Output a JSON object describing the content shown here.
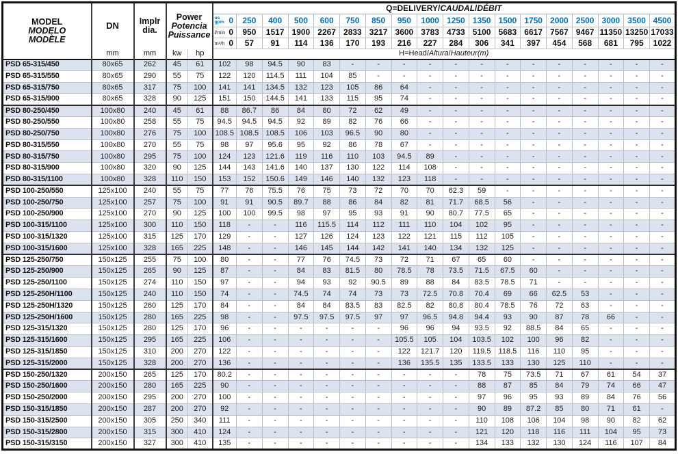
{
  "table": {
    "model_header": {
      "lines": [
        "MODEL",
        "MODELO",
        "MODÈLE"
      ]
    },
    "dn_header": {
      "label": "DN",
      "unit": "mm"
    },
    "impeller_header": {
      "lines": [
        "Implr",
        "dia."
      ],
      "unit": "mm"
    },
    "power_header": {
      "lines": [
        "Power",
        "Potencia",
        "Puissance"
      ],
      "units": [
        "kw",
        "hp"
      ]
    },
    "q_header": {
      "parts": [
        "Q=DELIVERY/",
        "CAUDAL",
        "/",
        "DÉBIT"
      ]
    },
    "h_header": {
      "parts": [
        "H=Head/",
        "Altura",
        "/",
        "Hauteur",
        "(m)"
      ]
    },
    "flow_units": {
      "gpm_label_top": "us",
      "gpm_label_bottom": "gpm",
      "lmin_label": "l/min",
      "m3h_label": "m³/h"
    },
    "flow_columns": {
      "gpm": [
        "0",
        "250",
        "400",
        "500",
        "600",
        "750",
        "850",
        "950",
        "1000",
        "1250",
        "1350",
        "1500",
        "1750",
        "2000",
        "2500",
        "3000",
        "3500",
        "4500"
      ],
      "lmin": [
        "0",
        "950",
        "1517",
        "1900",
        "2267",
        "2833",
        "3217",
        "3600",
        "3783",
        "4733",
        "5100",
        "5683",
        "6617",
        "7567",
        "9467",
        "11350",
        "13250",
        "17033"
      ],
      "m3h": [
        "0",
        "57",
        "91",
        "114",
        "136",
        "170",
        "193",
        "216",
        "227",
        "284",
        "306",
        "341",
        "397",
        "454",
        "568",
        "681",
        "795",
        "1022"
      ]
    },
    "group_end_rows": [
      3,
      10,
      16,
      26
    ],
    "colors": {
      "accent_blue": "#0070c0",
      "row_shade": "#dce3ee"
    },
    "rows": [
      {
        "model": "PSD 65-315/450",
        "dn": "80x65",
        "dia": "262",
        "kw": "45",
        "hp": "61",
        "heads": [
          "102",
          "98",
          "94.5",
          "90",
          "83",
          "-",
          "-",
          "-",
          "-",
          "-",
          "-",
          "-",
          "-",
          "-",
          "-",
          "-",
          "-",
          "-"
        ]
      },
      {
        "model": "PSD 65-315/550",
        "dn": "80x65",
        "dia": "290",
        "kw": "55",
        "hp": "75",
        "heads": [
          "122",
          "120",
          "114.5",
          "111",
          "104",
          "85",
          "-",
          "-",
          "-",
          "-",
          "-",
          "-",
          "-",
          "-",
          "-",
          "-",
          "-",
          "-"
        ]
      },
      {
        "model": "PSD 65-315/750",
        "dn": "80x65",
        "dia": "317",
        "kw": "75",
        "hp": "100",
        "heads": [
          "141",
          "141",
          "134.5",
          "132",
          "123",
          "105",
          "86",
          "64",
          "-",
          "-",
          "-",
          "-",
          "-",
          "-",
          "-",
          "-",
          "-",
          "-"
        ]
      },
      {
        "model": "PSD 65-315/900",
        "dn": "80x65",
        "dia": "328",
        "kw": "90",
        "hp": "125",
        "heads": [
          "151",
          "150",
          "144.5",
          "141",
          "133",
          "115",
          "95",
          "74",
          "-",
          "-",
          "-",
          "-",
          "-",
          "-",
          "-",
          "-",
          "-",
          "-"
        ]
      },
      {
        "model": "PSD 80-250/450",
        "dn": "100x80",
        "dia": "240",
        "kw": "45",
        "hp": "61",
        "heads": [
          "88",
          "86.7",
          "86",
          "84",
          "80",
          "72",
          "62",
          "49",
          "-",
          "-",
          "-",
          "-",
          "-",
          "-",
          "-",
          "-",
          "-",
          "-"
        ]
      },
      {
        "model": "PSD 80-250/550",
        "dn": "100x80",
        "dia": "258",
        "kw": "55",
        "hp": "75",
        "heads": [
          "94.5",
          "94.5",
          "94.5",
          "92",
          "89",
          "82",
          "76",
          "66",
          "-",
          "-",
          "-",
          "-",
          "-",
          "-",
          "-",
          "-",
          "-",
          "-"
        ]
      },
      {
        "model": "PSD 80-250/750",
        "dn": "100x80",
        "dia": "276",
        "kw": "75",
        "hp": "100",
        "heads": [
          "108.5",
          "108.5",
          "108.5",
          "106",
          "103",
          "96.5",
          "90",
          "80",
          "-",
          "-",
          "-",
          "-",
          "-",
          "-",
          "-",
          "-",
          "-",
          "-"
        ]
      },
      {
        "model": "PSD 80-315/550",
        "dn": "100x80",
        "dia": "270",
        "kw": "55",
        "hp": "75",
        "heads": [
          "98",
          "97",
          "95.6",
          "95",
          "92",
          "86",
          "78",
          "67",
          "-",
          "-",
          "-",
          "-",
          "-",
          "-",
          "-",
          "-",
          "-",
          "-"
        ]
      },
      {
        "model": "PSD 80-315/750",
        "dn": "100x80",
        "dia": "295",
        "kw": "75",
        "hp": "100",
        "heads": [
          "124",
          "123",
          "121.6",
          "119",
          "116",
          "110",
          "103",
          "94.5",
          "89",
          "-",
          "-",
          "-",
          "-",
          "-",
          "-",
          "-",
          "-",
          "-"
        ]
      },
      {
        "model": "PSD 80-315/900",
        "dn": "100x80",
        "dia": "320",
        "kw": "90",
        "hp": "125",
        "heads": [
          "144",
          "143",
          "141.6",
          "140",
          "137",
          "130",
          "122",
          "114",
          "108",
          "-",
          "-",
          "-",
          "-",
          "-",
          "-",
          "-",
          "-",
          "-"
        ]
      },
      {
        "model": "PSD 80-315/1100",
        "dn": "100x80",
        "dia": "328",
        "kw": "110",
        "hp": "150",
        "heads": [
          "153",
          "152",
          "150.6",
          "149",
          "146",
          "140",
          "132",
          "123",
          "118",
          "-",
          "-",
          "-",
          "-",
          "-",
          "-",
          "-",
          "-",
          "-"
        ]
      },
      {
        "model": "PSD 100-250/550",
        "dn": "125x100",
        "dia": "240",
        "kw": "55",
        "hp": "75",
        "heads": [
          "77",
          "76",
          "75.5",
          "76",
          "75",
          "73",
          "72",
          "70",
          "70",
          "62.3",
          "59",
          "-",
          "-",
          "-",
          "-",
          "-",
          "-",
          "-"
        ]
      },
      {
        "model": "PSD 100-250/750",
        "dn": "125x100",
        "dia": "257",
        "kw": "75",
        "hp": "100",
        "heads": [
          "91",
          "91",
          "90.5",
          "89.7",
          "88",
          "86",
          "84",
          "82",
          "81",
          "71.7",
          "68.5",
          "56",
          "-",
          "-",
          "-",
          "-",
          "-",
          "-"
        ]
      },
      {
        "model": "PSD 100-250/900",
        "dn": "125x100",
        "dia": "270",
        "kw": "90",
        "hp": "125",
        "heads": [
          "100",
          "100",
          "99.5",
          "98",
          "97",
          "95",
          "93",
          "91",
          "90",
          "80.7",
          "77.5",
          "65",
          "-",
          "-",
          "-",
          "-",
          "-",
          "-"
        ]
      },
      {
        "model": "PSD 100-315/1100",
        "dn": "125x100",
        "dia": "300",
        "kw": "110",
        "hp": "150",
        "heads": [
          "118",
          "-",
          "-",
          "116",
          "115.5",
          "114",
          "112",
          "111",
          "110",
          "104",
          "102",
          "95",
          "-",
          "-",
          "-",
          "-",
          "-",
          "-"
        ]
      },
      {
        "model": "PSD 100-315/1320",
        "dn": "125x100",
        "dia": "315",
        "kw": "125",
        "hp": "170",
        "heads": [
          "129",
          "-",
          "-",
          "127",
          "126",
          "124",
          "123",
          "122",
          "121",
          "115",
          "112",
          "105",
          "-",
          "-",
          "-",
          "-",
          "-",
          "-"
        ]
      },
      {
        "model": "PSD 100-315/1600",
        "dn": "125x100",
        "dia": "328",
        "kw": "165",
        "hp": "225",
        "heads": [
          "148",
          "-",
          "-",
          "146",
          "145",
          "144",
          "142",
          "141",
          "140",
          "134",
          "132",
          "125",
          "-",
          "-",
          "-",
          "-",
          "-",
          "-"
        ]
      },
      {
        "model": "PSD 125-250/750",
        "dn": "150x125",
        "dia": "255",
        "kw": "75",
        "hp": "100",
        "heads": [
          "80",
          "-",
          "-",
          "77",
          "76",
          "74.5",
          "73",
          "72",
          "71",
          "67",
          "65",
          "60",
          "-",
          "-",
          "-",
          "-",
          "-",
          "-"
        ]
      },
      {
        "model": "PSD 125-250/900",
        "dn": "150x125",
        "dia": "265",
        "kw": "90",
        "hp": "125",
        "heads": [
          "87",
          "-",
          "-",
          "84",
          "83",
          "81.5",
          "80",
          "78.5",
          "78",
          "73.5",
          "71.5",
          "67.5",
          "60",
          "-",
          "-",
          "-",
          "-",
          "-"
        ]
      },
      {
        "model": "PSD 125-250/1100",
        "dn": "150x125",
        "dia": "274",
        "kw": "110",
        "hp": "150",
        "heads": [
          "97",
          "-",
          "-",
          "94",
          "93",
          "92",
          "90.5",
          "89",
          "88",
          "84",
          "83.5",
          "78.5",
          "71",
          "-",
          "-",
          "-",
          "-",
          "-"
        ]
      },
      {
        "model": "PSD 125-250H/1100",
        "dn": "150x125",
        "dia": "240",
        "kw": "110",
        "hp": "150",
        "heads": [
          "74",
          "-",
          "-",
          "74.5",
          "74",
          "74",
          "73",
          "73",
          "72.5",
          "70.8",
          "70.4",
          "69",
          "66",
          "62.5",
          "53",
          "-",
          "-",
          "-"
        ]
      },
      {
        "model": "PSD 125-250H/1320",
        "dn": "150x125",
        "dia": "260",
        "kw": "125",
        "hp": "170",
        "heads": [
          "84",
          "-",
          "-",
          "84",
          "84",
          "83.5",
          "83",
          "82.5",
          "82",
          "80.8",
          "80.4",
          "78.5",
          "76",
          "72",
          "63",
          "-",
          "-",
          "-"
        ]
      },
      {
        "model": "PSD 125-250H/1600",
        "dn": "150x125",
        "dia": "280",
        "kw": "165",
        "hp": "225",
        "heads": [
          "98",
          "-",
          "-",
          "97.5",
          "97.5",
          "97.5",
          "97",
          "97",
          "96.5",
          "94.8",
          "94.4",
          "93",
          "90",
          "87",
          "78",
          "66",
          "-",
          "-"
        ]
      },
      {
        "model": "PSD 125-315/1320",
        "dn": "150x125",
        "dia": "280",
        "kw": "125",
        "hp": "170",
        "heads": [
          "96",
          "-",
          "-",
          "-",
          "-",
          "-",
          "-",
          "96",
          "96",
          "94",
          "93.5",
          "92",
          "88.5",
          "84",
          "65",
          "-",
          "-",
          "-"
        ]
      },
      {
        "model": "PSD 125-315/1600",
        "dn": "150x125",
        "dia": "295",
        "kw": "165",
        "hp": "225",
        "heads": [
          "106",
          "-",
          "-",
          "-",
          "-",
          "-",
          "-",
          "105.5",
          "105",
          "104",
          "103.5",
          "102",
          "100",
          "96",
          "82",
          "-",
          "-",
          "-"
        ]
      },
      {
        "model": "PSD 125-315/1850",
        "dn": "150x125",
        "dia": "310",
        "kw": "200",
        "hp": "270",
        "heads": [
          "122",
          "-",
          "-",
          "-",
          "-",
          "-",
          "-",
          "122",
          "121.7",
          "120",
          "119.5",
          "118.5",
          "116",
          "110",
          "95",
          "-",
          "-",
          "-"
        ]
      },
      {
        "model": "PSD 125-315/2000",
        "dn": "150x125",
        "dia": "328",
        "kw": "200",
        "hp": "270",
        "heads": [
          "136",
          "-",
          "-",
          "-",
          "-",
          "-",
          "-",
          "136",
          "135.5",
          "135",
          "133.5",
          "133",
          "130",
          "125",
          "110",
          "-",
          "-",
          "-"
        ]
      },
      {
        "model": "PSD 150-250/1320",
        "dn": "200x150",
        "dia": "265",
        "kw": "125",
        "hp": "170",
        "heads": [
          "80.2",
          "-",
          "-",
          "-",
          "-",
          "-",
          "-",
          "-",
          "-",
          "-",
          "78",
          "75",
          "73.5",
          "71",
          "67",
          "61",
          "54",
          "37"
        ]
      },
      {
        "model": "PSD 150-250/1600",
        "dn": "200x150",
        "dia": "280",
        "kw": "165",
        "hp": "225",
        "heads": [
          "90",
          "-",
          "-",
          "-",
          "-",
          "-",
          "-",
          "-",
          "-",
          "-",
          "88",
          "87",
          "85",
          "84",
          "79",
          "74",
          "66",
          "47"
        ]
      },
      {
        "model": "PSD 150-250/2000",
        "dn": "200x150",
        "dia": "295",
        "kw": "200",
        "hp": "270",
        "heads": [
          "100",
          "-",
          "-",
          "-",
          "-",
          "-",
          "-",
          "-",
          "-",
          "-",
          "97",
          "96",
          "95",
          "93",
          "89",
          "84",
          "76",
          "56"
        ]
      },
      {
        "model": "PSD 150-315/1850",
        "dn": "200x150",
        "dia": "287",
        "kw": "200",
        "hp": "270",
        "heads": [
          "92",
          "-",
          "-",
          "-",
          "-",
          "-",
          "-",
          "-",
          "-",
          "-",
          "90",
          "89",
          "87.2",
          "85",
          "80",
          "71",
          "61",
          "-"
        ]
      },
      {
        "model": "PSD 150-315/2500",
        "dn": "200x150",
        "dia": "305",
        "kw": "250",
        "hp": "340",
        "heads": [
          "111",
          "-",
          "-",
          "-",
          "-",
          "-",
          "-",
          "-",
          "-",
          "-",
          "110",
          "108",
          "106",
          "104",
          "98",
          "90",
          "82",
          "62"
        ]
      },
      {
        "model": "PSD 150-315/2800",
        "dn": "200x150",
        "dia": "315",
        "kw": "300",
        "hp": "410",
        "heads": [
          "124",
          "-",
          "-",
          "-",
          "-",
          "-",
          "-",
          "-",
          "-",
          "-",
          "121",
          "120",
          "118",
          "116",
          "111",
          "104",
          "95",
          "73"
        ]
      },
      {
        "model": "PSD 150-315/3150",
        "dn": "200x150",
        "dia": "327",
        "kw": "300",
        "hp": "410",
        "heads": [
          "135",
          "-",
          "-",
          "-",
          "-",
          "-",
          "-",
          "-",
          "-",
          "-",
          "134",
          "133",
          "132",
          "130",
          "124",
          "116",
          "107",
          "84"
        ]
      }
    ]
  }
}
